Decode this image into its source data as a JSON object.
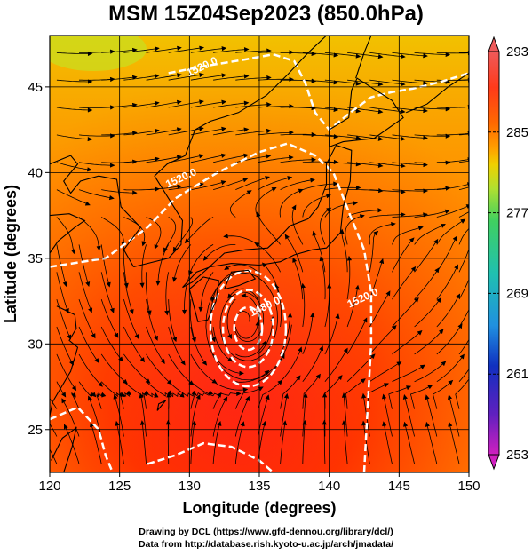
{
  "title": "MSM 15Z04Sep2023 (850.0hPa)",
  "x_axis": {
    "label": "Longitude (degrees)",
    "range": [
      120,
      150
    ],
    "ticks": [
      {
        "v": 120,
        "t": "120"
      },
      {
        "v": 125,
        "t": "125"
      },
      {
        "v": 130,
        "t": "130"
      },
      {
        "v": 135,
        "t": "135"
      },
      {
        "v": 140,
        "t": "140"
      },
      {
        "v": 145,
        "t": "145"
      },
      {
        "v": 150,
        "t": "150"
      }
    ]
  },
  "y_axis": {
    "label": "Latitude (degrees)",
    "range": [
      22.5,
      48
    ],
    "ticks": [
      {
        "v": 25,
        "t": "25"
      },
      {
        "v": 30,
        "t": "30"
      },
      {
        "v": 35,
        "t": "35"
      },
      {
        "v": 40,
        "t": "40"
      },
      {
        "v": 45,
        "t": "45"
      }
    ]
  },
  "colorbar": {
    "ticks": [
      {
        "v": 293,
        "t": "293"
      },
      {
        "v": 285,
        "t": "285"
      },
      {
        "v": 277,
        "t": "277"
      },
      {
        "v": 269,
        "t": "269"
      },
      {
        "v": 261,
        "t": "261"
      },
      {
        "v": 253,
        "t": "253"
      }
    ],
    "colors_top_to_bottom": [
      "#ef5a5a",
      "#ff3a1a",
      "#ff6a00",
      "#ffa000",
      "#f0d000",
      "#b0e030",
      "#40d060",
      "#20c0b0",
      "#2090e0",
      "#1030c0",
      "#6020c0",
      "#d020c0"
    ]
  },
  "contour_labels": [
    {
      "text": "1520.0",
      "lon": 131.0,
      "lat": 46.0
    },
    {
      "text": "1520.0",
      "lon": 129.5,
      "lat": 39.5
    },
    {
      "text": "1480.0",
      "lon": 135.5,
      "lat": 32.0
    },
    {
      "text": "1520.0",
      "lon": 142.5,
      "lat": 32.5
    }
  ],
  "typhoon_center": {
    "lon": 134.0,
    "lat": 31.3
  },
  "credits": [
    "Drawing by DCL (https://www.gfd-dennou.org/library/dcl/)",
    "Data from http://database.rish.kyoto-u.ac.jp/arch/jmadata/"
  ]
}
